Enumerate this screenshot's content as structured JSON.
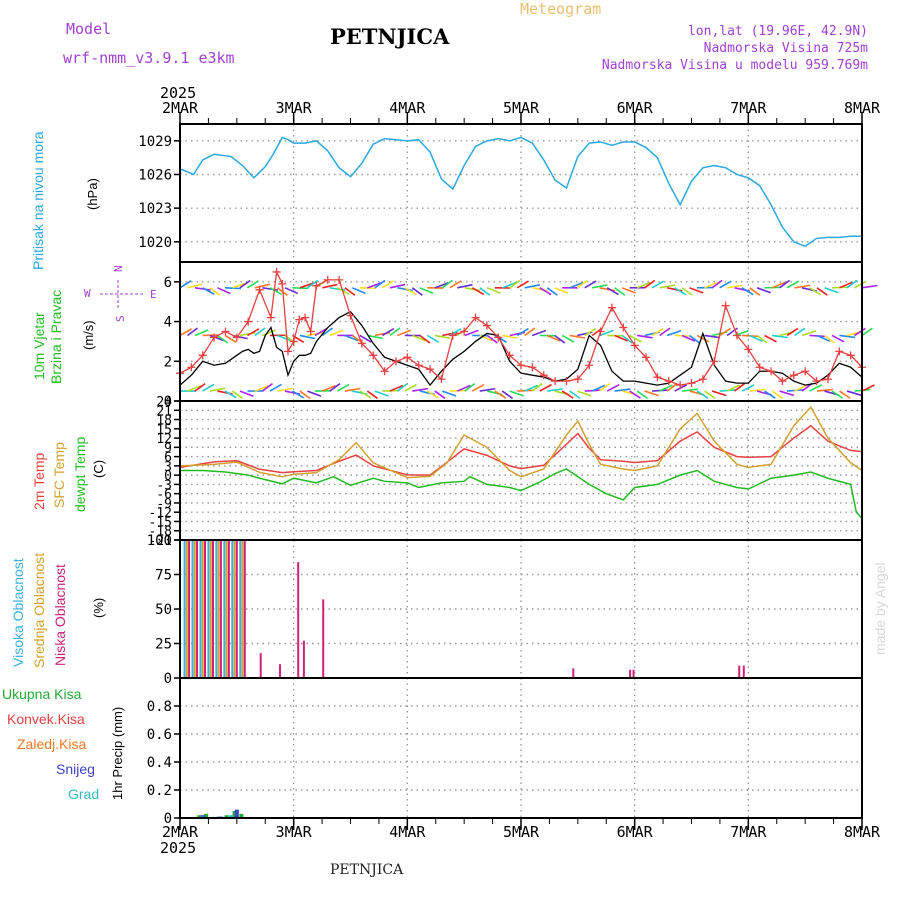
{
  "header": {
    "model_label": "Model",
    "model_name": "wrf-nmm_v3.9.1 e3km",
    "title": "PETNJICA",
    "meteogram_label": "Meteogram",
    "lonlat": "lon,lat (19.96E, 42.9N)",
    "elevation": "Nadmorska Visina 725m",
    "model_elevation": "Nadmorska Visina u modelu 959.769m",
    "year_top": "2025",
    "year_bottom": "2025",
    "footer": "PETNJICA",
    "credit": "made by Angel"
  },
  "colors": {
    "pressure": "#2aa8e0",
    "wind_speed": "#000000",
    "gust": "#e84040",
    "temp2m": "#e84040",
    "sfc": "#d4a030",
    "dew": "#22bb22",
    "high": "#3ab0e0",
    "mid": "#d4a030",
    "low": "#d0207a",
    "total": "#22aa33",
    "conv": "#e84040",
    "frozen": "#ee7722",
    "snow": "#4040cc",
    "grad": "#33bbbb",
    "purple": "#a040d0",
    "frame": "#000000",
    "grid": "#999999"
  },
  "panel_labels": {
    "pressure": [
      "Pritisak na nivou mora",
      "(hPa)"
    ],
    "wind": [
      "10m Vjetar",
      "Brzina i Pravac",
      "(m/s)"
    ],
    "compass": [
      "N",
      "W",
      "E",
      "S"
    ],
    "temp": [
      "2m Temp",
      "SFC Temp",
      "dewpt Temp",
      "(C)"
    ],
    "cloud": [
      "Visoka Oblacnost",
      "Srednja Oblacnost",
      "Niska Oblacnost",
      "(%)"
    ],
    "precip": [
      "Ukupna Kisa",
      "Konvek.Kisa",
      "Zaledj.Kisa",
      "Snijeg",
      "Grad",
      "1hr Precip (mm)"
    ]
  },
  "chart_data": [
    {
      "type": "line",
      "name": "pressure",
      "ylim": [
        1018.2,
        1030.5
      ],
      "yticks": [
        1020,
        1023,
        1026,
        1029
      ],
      "x_days": [
        "2MAR",
        "3MAR",
        "4MAR",
        "5MAR",
        "6MAR",
        "7MAR",
        "8MAR"
      ],
      "series": [
        {
          "x": [
            0,
            0.05,
            0.12,
            0.2,
            0.3,
            0.45,
            0.55,
            0.65,
            0.75,
            0.82,
            0.9,
            0.95,
            1.0,
            1.1,
            1.2,
            1.3,
            1.4,
            1.5,
            1.6,
            1.7,
            1.8,
            1.9,
            2.0,
            2.1,
            2.2,
            2.3,
            2.4,
            2.5,
            2.6,
            2.7,
            2.8,
            2.9,
            3.0,
            3.1,
            3.2,
            3.3,
            3.4,
            3.5,
            3.6,
            3.7,
            3.8,
            3.9,
            4.0,
            4.1,
            4.2,
            4.3,
            4.4,
            4.5,
            4.6,
            4.7,
            4.8,
            4.9,
            5.0,
            5.1,
            5.2,
            5.3,
            5.4,
            5.5,
            5.6,
            5.7,
            5.8,
            5.9,
            6.0
          ],
          "values": [
            1026.5,
            1026.3,
            1026.0,
            1027.3,
            1027.8,
            1027.6,
            1026.8,
            1025.7,
            1026.7,
            1027.8,
            1029.3,
            1029.1,
            1028.8,
            1028.8,
            1029.0,
            1028.1,
            1026.6,
            1025.8,
            1027.0,
            1028.7,
            1029.2,
            1029.1,
            1029.0,
            1029.1,
            1028.0,
            1025.6,
            1024.7,
            1026.8,
            1028.5,
            1029.0,
            1029.2,
            1029.0,
            1029.3,
            1028.8,
            1027.3,
            1025.5,
            1024.8,
            1027.6,
            1028.8,
            1028.9,
            1028.6,
            1028.9,
            1028.9,
            1028.4,
            1027.5,
            1025.2,
            1023.3,
            1025.4,
            1026.6,
            1026.8,
            1026.6,
            1026.0,
            1025.7,
            1025.0,
            1023.3,
            1021.3,
            1020.0,
            1019.6,
            1020.3,
            1020.4,
            1020.4,
            1020.5,
            1020.5
          ]
        }
      ]
    },
    {
      "type": "line",
      "name": "wind",
      "ylim": [
        0,
        7
      ],
      "yticks": [
        0,
        2,
        4,
        6
      ],
      "series": [
        {
          "name": "speed",
          "x": [
            0,
            0.1,
            0.2,
            0.3,
            0.4,
            0.5,
            0.55,
            0.6,
            0.65,
            0.7,
            0.75,
            0.8,
            0.85,
            0.9,
            0.95,
            1.0,
            1.05,
            1.1,
            1.15,
            1.2,
            1.3,
            1.4,
            1.5,
            1.6,
            1.7,
            1.8,
            1.9,
            2.0,
            2.1,
            2.2,
            2.3,
            2.4,
            2.5,
            2.6,
            2.7,
            2.8,
            2.9,
            3.0,
            3.1,
            3.2,
            3.3,
            3.4,
            3.5,
            3.6,
            3.7,
            3.8,
            3.9,
            4.0,
            4.1,
            4.2,
            4.3,
            4.4,
            4.5,
            4.6,
            4.7,
            4.8,
            4.9,
            5.0,
            5.1,
            5.2,
            5.3,
            5.4,
            5.5,
            5.6,
            5.7,
            5.8,
            5.9,
            6.0
          ],
          "values": [
            0.8,
            1.3,
            2.0,
            1.8,
            1.9,
            2.3,
            2.5,
            2.6,
            2.4,
            2.5,
            3.3,
            3.7,
            2.7,
            2.5,
            1.3,
            2.0,
            2.3,
            2.3,
            2.4,
            3.0,
            3.7,
            4.2,
            4.5,
            3.8,
            2.9,
            2.2,
            2.0,
            1.8,
            1.6,
            0.8,
            1.5,
            2.1,
            2.5,
            3.0,
            3.4,
            3.3,
            2.0,
            1.4,
            1.3,
            1.2,
            1.0,
            1.1,
            1.6,
            3.3,
            2.8,
            1.5,
            1.0,
            1.0,
            0.9,
            0.8,
            0.9,
            1.3,
            1.7,
            3.4,
            1.8,
            1.0,
            0.9,
            0.9,
            1.5,
            1.5,
            1.4,
            1.0,
            0.8,
            0.9,
            1.3,
            1.9,
            1.7,
            1.2
          ]
        },
        {
          "name": "gust",
          "x": [
            0,
            0.1,
            0.2,
            0.3,
            0.4,
            0.5,
            0.6,
            0.7,
            0.8,
            0.85,
            0.9,
            0.95,
            1.0,
            1.05,
            1.1,
            1.15,
            1.2,
            1.3,
            1.4,
            1.5,
            1.6,
            1.7,
            1.8,
            1.9,
            2.0,
            2.1,
            2.2,
            2.3,
            2.4,
            2.5,
            2.6,
            2.7,
            2.8,
            2.9,
            3.0,
            3.1,
            3.2,
            3.3,
            3.4,
            3.5,
            3.6,
            3.7,
            3.8,
            3.9,
            4.0,
            4.1,
            4.2,
            4.3,
            4.4,
            4.5,
            4.6,
            4.7,
            4.8,
            4.9,
            5.0,
            5.1,
            5.2,
            5.3,
            5.4,
            5.5,
            5.6,
            5.7,
            5.8,
            5.9,
            6.0
          ],
          "values": [
            1.4,
            1.7,
            2.3,
            3.2,
            3.5,
            3.2,
            4.0,
            5.6,
            4.2,
            6.5,
            5.9,
            2.5,
            3.0,
            4.1,
            4.2,
            3.5,
            5.8,
            6.1,
            6.1,
            4.3,
            2.9,
            2.3,
            1.5,
            2.0,
            2.2,
            1.8,
            1.6,
            1.1,
            3.3,
            3.5,
            4.2,
            3.8,
            3.2,
            2.3,
            1.8,
            1.7,
            1.3,
            1.0,
            1.0,
            1.1,
            1.8,
            3.5,
            4.7,
            3.7,
            2.8,
            2.2,
            1.2,
            1.0,
            0.8,
            0.9,
            1.1,
            2.0,
            4.8,
            3.3,
            2.6,
            1.7,
            1.5,
            1.0,
            1.3,
            1.5,
            1.0,
            1.1,
            2.5,
            2.3,
            1.7
          ]
        }
      ]
    },
    {
      "type": "line",
      "name": "temp",
      "ylim": [
        -21,
        24
      ],
      "yticks": [
        24,
        21,
        18,
        15,
        12,
        9,
        6,
        3,
        0,
        -3,
        -6,
        -9,
        -12,
        -15,
        -18,
        -21
      ],
      "series": [
        {
          "name": "t2m",
          "x": [
            0,
            0.3,
            0.5,
            0.7,
            0.9,
            1.0,
            1.2,
            1.4,
            1.55,
            1.7,
            2.0,
            2.2,
            2.35,
            2.5,
            2.7,
            2.9,
            3.0,
            3.2,
            3.4,
            3.5,
            3.6,
            3.7,
            3.9,
            4.0,
            4.2,
            4.4,
            4.55,
            4.7,
            4.9,
            5.0,
            5.2,
            5.4,
            5.55,
            5.7,
            5.9,
            6.0
          ],
          "values": [
            2.5,
            4.3,
            4.7,
            1.9,
            0.8,
            1.1,
            1.5,
            4.5,
            6.5,
            3.0,
            0.1,
            0.0,
            4.2,
            8.5,
            6.4,
            3.0,
            2.1,
            3.2,
            10.0,
            13.5,
            8.7,
            5.0,
            4.5,
            4.1,
            4.7,
            11.0,
            14.0,
            9.0,
            6.0,
            5.8,
            6.0,
            12.0,
            16.0,
            11.0,
            8.0,
            7.6
          ]
        },
        {
          "name": "sfc",
          "x": [
            0,
            0.3,
            0.5,
            0.7,
            0.9,
            1.0,
            1.2,
            1.4,
            1.55,
            1.7,
            2.0,
            2.2,
            2.35,
            2.5,
            2.7,
            2.9,
            3.0,
            3.2,
            3.4,
            3.5,
            3.6,
            3.7,
            3.9,
            4.0,
            4.2,
            4.4,
            4.55,
            4.7,
            4.9,
            5.0,
            5.2,
            5.4,
            5.55,
            5.7,
            5.9,
            6.0
          ],
          "values": [
            3.0,
            3.5,
            4.2,
            0.9,
            -0.5,
            0.3,
            0.8,
            5.0,
            10.5,
            4.0,
            -0.8,
            -0.4,
            4.0,
            13.0,
            9.0,
            1.5,
            -0.5,
            2.0,
            13.0,
            17.5,
            10.0,
            3.5,
            2.0,
            1.5,
            3.0,
            15.0,
            20.0,
            11.0,
            3.5,
            2.5,
            3.5,
            16.0,
            22.0,
            12.0,
            4.0,
            1.5
          ]
        },
        {
          "name": "dew",
          "x": [
            0,
            0.2,
            0.4,
            0.6,
            0.7,
            0.9,
            1.0,
            1.2,
            1.35,
            1.5,
            1.7,
            1.8,
            2.0,
            2.1,
            2.3,
            2.5,
            2.55,
            2.7,
            2.9,
            3.0,
            3.15,
            3.3,
            3.4,
            3.6,
            3.75,
            3.9,
            4.0,
            4.2,
            4.4,
            4.55,
            4.7,
            4.9,
            5.0,
            5.2,
            5.4,
            5.55,
            5.7,
            5.9,
            5.95,
            6.0
          ],
          "values": [
            1.5,
            1.5,
            1.0,
            0.0,
            -1.0,
            -2.8,
            -1.0,
            -2.5,
            -0.5,
            -3.3,
            -1.0,
            -2.0,
            -2.5,
            -4.0,
            -2.5,
            -2.0,
            -0.5,
            -3.0,
            -4.0,
            -5.0,
            -2.5,
            0.5,
            2.0,
            -3.0,
            -6.0,
            -8.0,
            -4.0,
            -3.0,
            0.0,
            1.5,
            -2.0,
            -4.0,
            -4.5,
            -1.0,
            0.0,
            1.0,
            -1.0,
            -3.0,
            -12.0,
            -14.0
          ]
        }
      ]
    },
    {
      "type": "bar",
      "name": "cloud",
      "ylim": [
        0,
        100
      ],
      "yticks": [
        0,
        25,
        50,
        75,
        100
      ],
      "series": [
        {
          "name": "high",
          "x": [
            0.04,
            0.11,
            0.18,
            0.25,
            0.32,
            0.39,
            0.46,
            0.53
          ],
          "values": [
            100,
            100,
            100,
            100,
            100,
            100,
            100,
            100
          ]
        },
        {
          "name": "mid",
          "x": [
            0.06,
            0.13,
            0.2,
            0.27,
            0.34,
            0.41,
            0.48,
            0.55
          ],
          "values": [
            100,
            100,
            100,
            100,
            100,
            100,
            100,
            100
          ]
        },
        {
          "name": "low",
          "x": [
            0.08,
            0.15,
            0.22,
            0.29,
            0.36,
            0.43,
            0.5,
            0.57,
            0.71,
            0.88,
            1.04,
            1.09,
            1.26,
            3.46,
            3.96,
            3.99,
            4.92,
            4.96
          ],
          "values": [
            100,
            100,
            100,
            100,
            100,
            100,
            100,
            100,
            18,
            10,
            84,
            27,
            57,
            7,
            6,
            6,
            9,
            9
          ]
        }
      ]
    },
    {
      "type": "bar",
      "name": "precip",
      "ylim": [
        0,
        1.0
      ],
      "yticks": [
        0,
        0.2,
        0.4,
        0.6,
        0.8
      ],
      "series": [
        {
          "name": "total",
          "x": [
            0.17,
            0.23,
            0.34,
            0.41,
            0.48,
            0.54
          ],
          "values": [
            0.02,
            0.03,
            0.01,
            0.02,
            0.05,
            0.03
          ]
        },
        {
          "name": "snow",
          "x": [
            0.2,
            0.36,
            0.5
          ],
          "values": [
            0.02,
            0.01,
            0.06
          ]
        },
        {
          "name": "grad",
          "x": [
            0.19,
            0.45
          ],
          "values": [
            0.01,
            0.02
          ]
        }
      ]
    }
  ]
}
